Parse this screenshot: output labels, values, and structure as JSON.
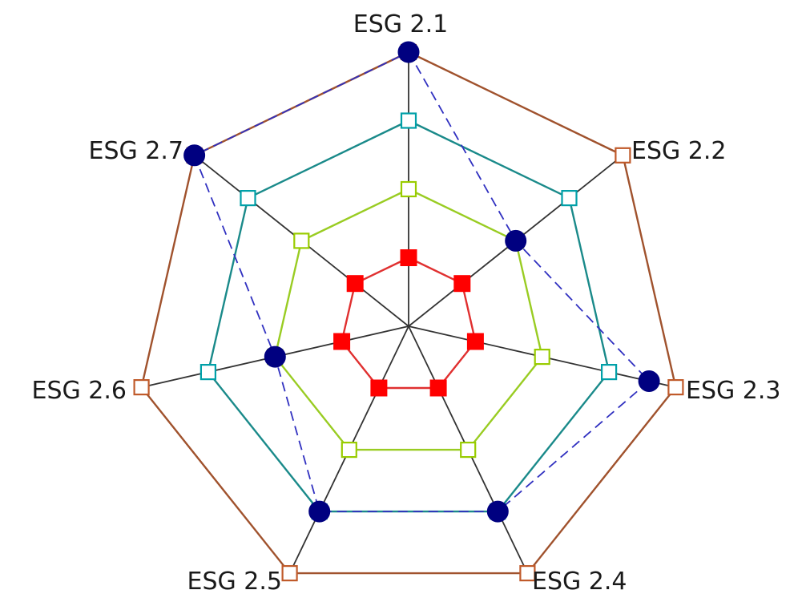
{
  "chart_data": {
    "type": "radar",
    "title": "",
    "categories": [
      "ESG 2.1",
      "ESG 2.2",
      "ESG 2.3",
      "ESG 2.4",
      "ESG 2.5",
      "ESG 2.6",
      "ESG 2.7"
    ],
    "rlim": [
      0,
      4
    ],
    "grid": true,
    "legend": "none",
    "series": [
      {
        "values": [
          1,
          1,
          1,
          1,
          1,
          1,
          1
        ],
        "color": "#ff0000",
        "line_color": "#e03030",
        "marker": "filled-square",
        "line_style": "solid"
      },
      {
        "values": [
          2,
          2,
          2,
          2,
          2,
          2,
          2
        ],
        "color": "#99cc00",
        "line_color": "#99cc22",
        "marker": "open-square",
        "line_style": "solid"
      },
      {
        "values": [
          3,
          3,
          3,
          3,
          3,
          3,
          3
        ],
        "color": "#00a0a8",
        "line_color": "#1a8a8a",
        "marker": "open-square",
        "line_style": "solid"
      },
      {
        "values": [
          4,
          4,
          4,
          4,
          4,
          4,
          4
        ],
        "color": "#c05a2a",
        "line_color": "#a0522d",
        "marker": "open-square",
        "line_style": "solid"
      },
      {
        "values": [
          4,
          2,
          3.6,
          3,
          3,
          2,
          4
        ],
        "color": "#000080",
        "line_color": "#3030c0",
        "marker": "filled-circle",
        "line_style": "dashed"
      }
    ]
  }
}
